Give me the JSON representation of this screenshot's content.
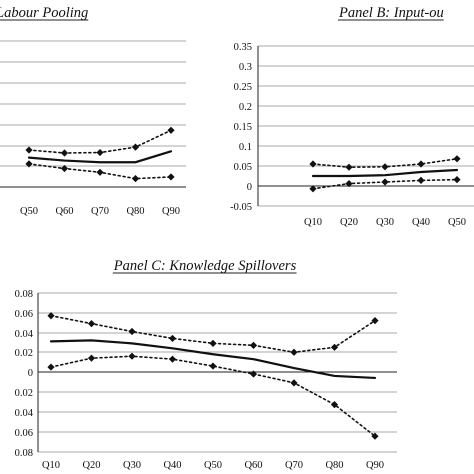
{
  "chart_data": [
    {
      "type": "line",
      "title": "Labour Pooling",
      "title_underlined": true,
      "x": [
        "Q50",
        "Q60",
        "Q70",
        "Q80",
        "Q90"
      ],
      "series": [
        {
          "role": "estimate",
          "style": "solid",
          "values": [
            0.07,
            0.063,
            0.059,
            0.059,
            0.085
          ]
        },
        {
          "role": "upper-bound",
          "style": "dotted",
          "values": [
            0.088,
            0.081,
            0.082,
            0.095,
            0.135
          ]
        },
        {
          "role": "lower-bound",
          "style": "dotted",
          "values": [
            0.055,
            0.044,
            0.035,
            0.02,
            0.024
          ]
        }
      ],
      "grid": true
    },
    {
      "type": "line",
      "title": "Panel B: Input-ou",
      "title_underlined": true,
      "x": [
        "Q10",
        "Q20",
        "Q30",
        "Q40",
        "Q50"
      ],
      "y_ticks": [
        "0.35",
        "0.3",
        "0.25",
        "0.2",
        "0.15",
        "0.1",
        "0.05",
        "0",
        "-0.05"
      ],
      "ylim": [
        -0.05,
        0.35
      ],
      "series": [
        {
          "role": "estimate",
          "style": "solid",
          "values": [
            0.025,
            0.025,
            0.027,
            0.035,
            0.04
          ]
        },
        {
          "role": "upper-bound",
          "style": "dotted",
          "values": [
            0.055,
            0.047,
            0.048,
            0.055,
            0.068
          ]
        },
        {
          "role": "lower-bound",
          "style": "dotted",
          "values": [
            -0.007,
            0.006,
            0.01,
            0.014,
            0.016
          ]
        }
      ],
      "grid": true
    },
    {
      "type": "line",
      "title": "Panel C: Knowledge Spillovers",
      "title_underlined": true,
      "x": [
        "Q10",
        "Q20",
        "Q30",
        "Q40",
        "Q50",
        "Q60",
        "Q70",
        "Q80",
        "Q90"
      ],
      "y_ticks": [
        "0.08",
        "0.06",
        "0.04",
        "0.02",
        "0",
        "0.02",
        "0.04",
        "0.06",
        "0.08"
      ],
      "ylim": [
        -0.08,
        0.08
      ],
      "series": [
        {
          "role": "estimate",
          "style": "solid",
          "values": [
            0.031,
            0.032,
            0.029,
            0.024,
            0.018,
            0.013,
            0.004,
            -0.004,
            -0.006
          ]
        },
        {
          "role": "upper-bound",
          "style": "dotted",
          "values": [
            0.057,
            0.049,
            0.041,
            0.034,
            0.029,
            0.027,
            0.02,
            0.025,
            0.052
          ]
        },
        {
          "role": "lower-bound",
          "style": "dotted",
          "values": [
            0.005,
            0.014,
            0.016,
            0.013,
            0.006,
            -0.002,
            -0.011,
            -0.033,
            -0.065
          ]
        }
      ],
      "grid": true
    }
  ]
}
